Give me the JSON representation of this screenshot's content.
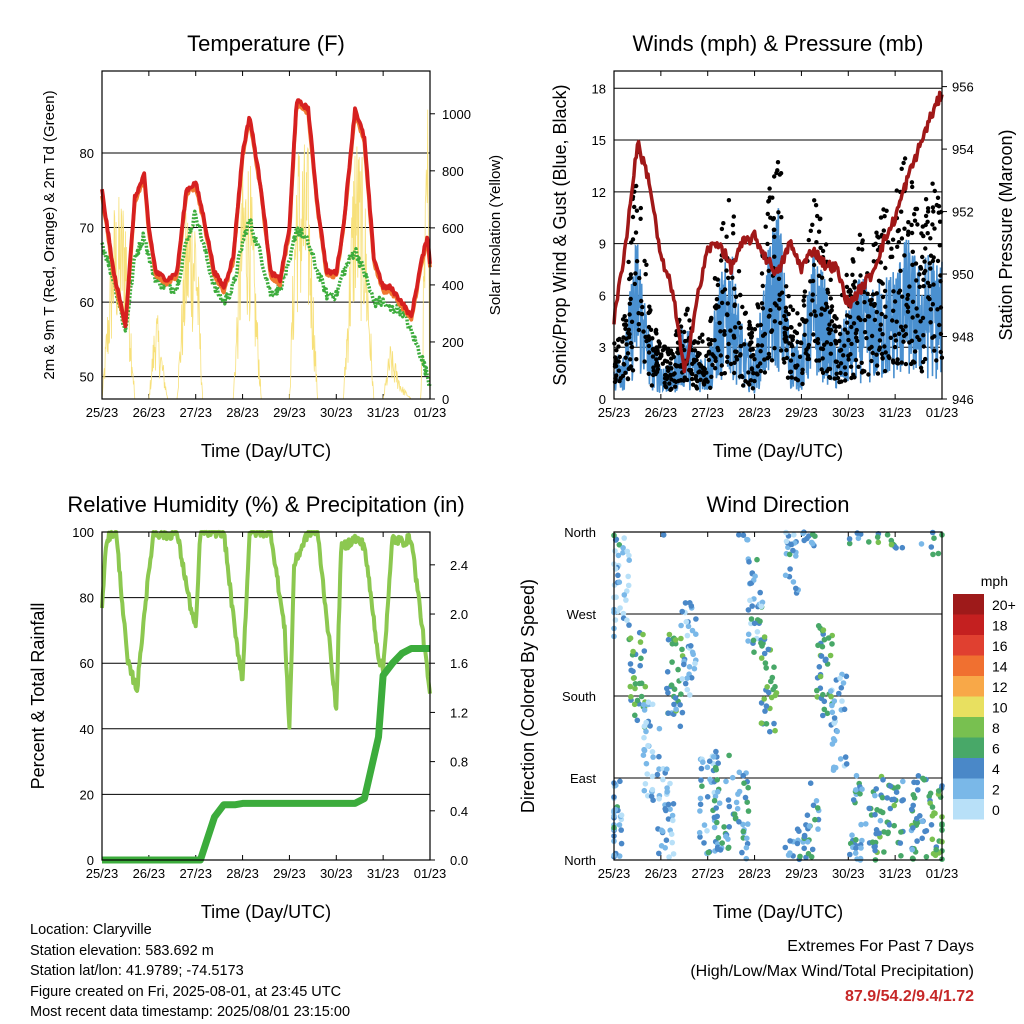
{
  "chart_data": [
    {
      "type": "line",
      "title": "Temperature (F)",
      "xlabel": "Time (Day/UTC)",
      "ylabel": "2m & 9m T (Red, Orange) & 2m Td (Green)",
      "y2label": "Solar Insolation (Yellow)",
      "x_ticks": [
        "25/23",
        "26/23",
        "27/23",
        "28/23",
        "29/23",
        "30/23",
        "31/23",
        "01/23"
      ],
      "ylim": [
        47,
        91
      ],
      "y_ticks": [
        50,
        60,
        70,
        80
      ],
      "y2lim": [
        0,
        1150
      ],
      "y2_ticks": [
        0,
        200,
        400,
        600,
        800,
        1000
      ],
      "grid": "horizontal",
      "x_days": [
        0,
        0.25,
        0.5,
        0.7,
        0.9,
        1.0,
        1.15,
        1.4,
        1.6,
        1.8,
        2.0,
        2.15,
        2.4,
        2.6,
        2.8,
        3.0,
        3.15,
        3.4,
        3.6,
        3.8,
        4.0,
        4.15,
        4.4,
        4.6,
        4.8,
        5.0,
        5.15,
        5.4,
        5.6,
        5.8,
        6.0,
        6.15,
        6.4,
        6.6,
        6.8,
        6.95,
        7.0
      ],
      "series": [
        {
          "name": "2m T",
          "color": "#d62020",
          "values": [
            75,
            64,
            57,
            74,
            77,
            70,
            64,
            63,
            64,
            75,
            76,
            72,
            64,
            62,
            66,
            80,
            85,
            75,
            64,
            63,
            70,
            87,
            86,
            73,
            64,
            64,
            70,
            86,
            82,
            66,
            62,
            62,
            60,
            58,
            65,
            69,
            65
          ]
        },
        {
          "name": "9m T",
          "color": "#f07830",
          "values": [
            74.5,
            63.5,
            56.5,
            73.5,
            76.5,
            69.5,
            63.5,
            62.5,
            63.5,
            74.5,
            75.5,
            71.5,
            63.5,
            61.5,
            65.5,
            79.5,
            84.5,
            74.5,
            63.5,
            62.5,
            69.5,
            86.5,
            85.5,
            72.5,
            63.5,
            63.5,
            69.5,
            85.5,
            81.5,
            65.5,
            61.5,
            61.5,
            59.5,
            57.5,
            64.5,
            68.5,
            64.5
          ]
        },
        {
          "name": "2m Td",
          "color": "#3cac3c",
          "values": [
            68,
            63,
            56,
            66,
            69,
            66,
            63,
            62,
            62,
            68,
            72,
            68,
            62,
            60,
            62,
            68,
            71,
            66,
            61,
            62,
            65,
            70,
            68,
            64,
            61,
            61,
            64,
            67,
            64,
            60,
            60,
            59,
            59,
            56,
            53,
            50,
            49
          ]
        },
        {
          "name": "Solar Insolation",
          "color": "#f7e07a",
          "axis": "right",
          "values": [
            0,
            700,
            750,
            0,
            0,
            0,
            350,
            0,
            0,
            700,
            750,
            0,
            0,
            0,
            0,
            850,
            900,
            0,
            0,
            0,
            0,
            950,
            900,
            0,
            0,
            0,
            0,
            1000,
            800,
            0,
            0,
            200,
            50,
            0,
            0,
            1100,
            0
          ]
        }
      ]
    },
    {
      "type": "scatter",
      "title": "Winds (mph) & Pressure (mb)",
      "xlabel": "Time (Day/UTC)",
      "ylabel": "Sonic/Prop Wind & Gust (Blue, Black)",
      "y2label": "Station Pressure (Maroon)",
      "x_ticks": [
        "25/23",
        "26/23",
        "27/23",
        "28/23",
        "29/23",
        "30/23",
        "31/23",
        "01/23"
      ],
      "ylim": [
        0,
        19
      ],
      "y_ticks": [
        0,
        3,
        6,
        9,
        12,
        15,
        18
      ],
      "y2lim": [
        946,
        956.5
      ],
      "y2_ticks": [
        946,
        948,
        950,
        952,
        954,
        956
      ],
      "grid": "horizontal",
      "x_days": [
        0,
        0.25,
        0.5,
        0.75,
        1.0,
        1.25,
        1.5,
        1.75,
        2.0,
        2.25,
        2.5,
        2.75,
        3.0,
        3.25,
        3.5,
        3.75,
        4.0,
        4.25,
        4.5,
        4.75,
        5.0,
        5.25,
        5.5,
        5.75,
        6.0,
        6.25,
        6.5,
        6.75,
        7.0
      ],
      "series": [
        {
          "name": "Sonic/Prop Wind",
          "color": "#4a90d0",
          "values": [
            1.5,
            2.5,
            6.5,
            2.5,
            1.5,
            1.2,
            3.0,
            2.0,
            1.5,
            4.5,
            5.5,
            2.5,
            1.5,
            5.0,
            7.5,
            2.5,
            2.0,
            5.5,
            4.5,
            2.0,
            3.5,
            4.5,
            4.0,
            4.5,
            5.0,
            6.0,
            5.0,
            5.5,
            5.0
          ]
        },
        {
          "name": "Gust",
          "color": "#000000",
          "values": [
            3.0,
            5.0,
            14.5,
            5.0,
            3.0,
            2.5,
            6.0,
            4.0,
            3.0,
            9.0,
            11.0,
            5.0,
            3.5,
            10.0,
            14.5,
            5.0,
            4.5,
            11.0,
            9.0,
            4.5,
            7.5,
            9.0,
            8.0,
            10.0,
            11.0,
            13.0,
            10.0,
            12.0,
            11.0
          ]
        },
        {
          "name": "Station Pressure",
          "color": "#a01818",
          "axis": "right",
          "values": [
            948.5,
            951.0,
            954.2,
            953.0,
            950.5,
            949.5,
            946.8,
            949.0,
            950.8,
            951.0,
            950.2,
            951.0,
            951.2,
            950.5,
            950.0,
            951.0,
            950.2,
            950.8,
            950.3,
            950.2,
            949.0,
            949.5,
            950.0,
            951.0,
            951.8,
            953.0,
            954.0,
            955.0,
            955.8
          ]
        }
      ]
    },
    {
      "type": "line",
      "title": "Relative Humidity (%) & Precipitation (in)",
      "xlabel": "Time (Day/UTC)",
      "ylabel": "Percent & Total Rainfall",
      "x_ticks": [
        "25/23",
        "26/23",
        "27/23",
        "28/23",
        "29/23",
        "30/23",
        "31/23",
        "01/23"
      ],
      "ylim": [
        0,
        100
      ],
      "y_ticks": [
        0,
        20,
        40,
        60,
        80,
        100
      ],
      "y2lim": [
        0,
        2.667
      ],
      "y2_ticks": [
        "0.0",
        "0.4",
        "0.8",
        "1.2",
        "1.6",
        "2.0",
        "2.4"
      ],
      "grid": "horizontal",
      "x_days": [
        0,
        0.1,
        0.3,
        0.55,
        0.75,
        0.9,
        1.1,
        1.4,
        1.6,
        1.85,
        2.0,
        2.1,
        2.4,
        2.6,
        2.85,
        3.0,
        3.15,
        3.4,
        3.6,
        3.9,
        4.0,
        4.1,
        4.4,
        4.6,
        4.9,
        5.0,
        5.1,
        5.4,
        5.6,
        5.9,
        6.0,
        6.2,
        6.4,
        6.6,
        6.8,
        7.0
      ],
      "series": [
        {
          "name": "Relative Humidity",
          "color": "#8cc850",
          "values": [
            78,
            98,
            100,
            60,
            52,
            75,
            100,
            99,
            100,
            80,
            70,
            100,
            100,
            100,
            68,
            55,
            100,
            100,
            100,
            70,
            40,
            90,
            100,
            100,
            60,
            45,
            95,
            98,
            96,
            62,
            58,
            98,
            97,
            98,
            75,
            50
          ]
        },
        {
          "name": "Total Precipitation",
          "color": "#3cac3c",
          "axis": "right",
          "values": [
            0,
            0,
            0,
            0,
            0,
            0,
            0,
            0,
            0,
            0,
            0,
            0,
            0.35,
            0.45,
            0.45,
            0.46,
            0.46,
            0.46,
            0.46,
            0.46,
            0.46,
            0.46,
            0.46,
            0.46,
            0.46,
            0.46,
            0.46,
            0.46,
            0.5,
            1.0,
            1.5,
            1.6,
            1.68,
            1.72,
            1.72,
            1.72
          ]
        }
      ]
    },
    {
      "type": "scatter",
      "title": "Wind Direction",
      "xlabel": "Time (Day/UTC)",
      "ylabel": "Direction (Colored By Speed)",
      "x_ticks": [
        "25/23",
        "26/23",
        "27/23",
        "28/23",
        "29/23",
        "30/23",
        "31/23",
        "01/23"
      ],
      "y_ticks": [
        "North",
        "East",
        "South",
        "West",
        "North"
      ],
      "ylim": [
        0,
        360
      ],
      "grid": "horizontal",
      "legend": {
        "title": "mph",
        "position": "right",
        "labels": [
          "20+",
          "18",
          "16",
          "14",
          "12",
          "10",
          "8",
          "6",
          "4",
          "2",
          "0"
        ],
        "colors": [
          "#9e1a1a",
          "#c42020",
          "#e04030",
          "#f07030",
          "#f8a848",
          "#e8e060",
          "#78c050",
          "#48a868",
          "#4a88c8",
          "#7ab8e8",
          "#b8e0f8"
        ]
      },
      "clusters": [
        {
          "day": 0.0,
          "dir": 38,
          "speed": 3
        },
        {
          "day": 0.15,
          "dir": 300,
          "speed": 1
        },
        {
          "day": 0.5,
          "dir": 195,
          "speed": 6
        },
        {
          "day": 0.8,
          "dir": 120,
          "speed": 2
        },
        {
          "day": 1.1,
          "dir": 50,
          "speed": 2
        },
        {
          "day": 1.3,
          "dir": 195,
          "speed": 5
        },
        {
          "day": 1.6,
          "dir": 230,
          "speed": 2
        },
        {
          "day": 2.0,
          "dir": 60,
          "speed": 3
        },
        {
          "day": 2.3,
          "dir": 65,
          "speed": 4
        },
        {
          "day": 2.7,
          "dir": 45,
          "speed": 4
        },
        {
          "day": 3.0,
          "dir": 280,
          "speed": 3
        },
        {
          "day": 3.3,
          "dir": 195,
          "speed": 6
        },
        {
          "day": 3.8,
          "dir": 340,
          "speed": 3
        },
        {
          "day": 4.2,
          "dir": 40,
          "speed": 4
        },
        {
          "day": 4.5,
          "dir": 210,
          "speed": 6
        },
        {
          "day": 4.8,
          "dir": 150,
          "speed": 2
        },
        {
          "day": 5.2,
          "dir": 40,
          "speed": 4
        },
        {
          "day": 5.6,
          "dir": 40,
          "speed": 5
        },
        {
          "day": 6.0,
          "dir": 35,
          "speed": 5
        },
        {
          "day": 6.5,
          "dir": 40,
          "speed": 5
        },
        {
          "day": 6.9,
          "dir": 30,
          "speed": 6
        }
      ]
    }
  ],
  "footer": {
    "location": "Location: Claryville",
    "elevation": "Station elevation: 583.692 m",
    "latlon": "Station lat/lon: 41.9789; -74.5173",
    "created": "Figure created on Fri, 2025-08-01, at 23:45 UTC",
    "recent": "Most recent data timestamp: 2025/08/01 23:15:00"
  },
  "extremes": {
    "title": "Extremes For Past 7 Days",
    "subtitle": "(High/Low/Max Wind/Total Precipitation)",
    "values": "87.9/54.2/9.4/1.72"
  }
}
